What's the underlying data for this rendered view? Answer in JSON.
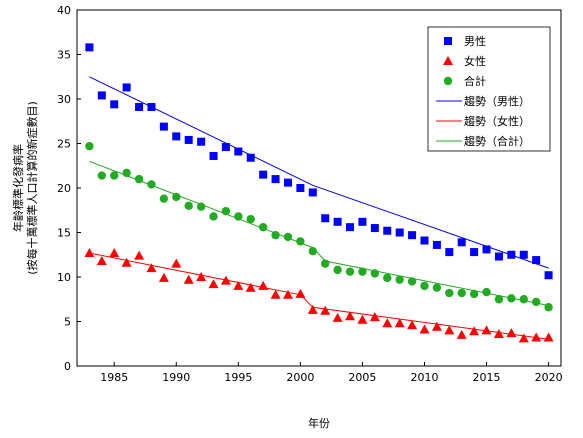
{
  "chart_data": {
    "type": "scatter",
    "xlabel": "年份",
    "ylabel_line1": "年齡標準化發病率",
    "ylabel_line2": "(按每十萬標準人口計算的新症數目)",
    "xlim": [
      1982,
      2021
    ],
    "ylim": [
      0,
      40
    ],
    "xticks": [
      1985,
      1990,
      1995,
      2000,
      2005,
      2010,
      2015,
      2020
    ],
    "yticks": [
      0,
      5,
      10,
      15,
      20,
      25,
      30,
      35,
      40
    ],
    "x": [
      1983,
      1984,
      1985,
      1986,
      1987,
      1988,
      1989,
      1990,
      1991,
      1992,
      1993,
      1994,
      1995,
      1996,
      1997,
      1998,
      1999,
      2000,
      2001,
      2002,
      2003,
      2004,
      2005,
      2006,
      2007,
      2008,
      2009,
      2010,
      2011,
      2012,
      2013,
      2014,
      2015,
      2016,
      2017,
      2018,
      2019,
      2020
    ],
    "series": [
      {
        "name": "男性",
        "marker": "square",
        "color": "#0000ff",
        "values": [
          35.8,
          30.4,
          29.4,
          31.3,
          29.1,
          29.1,
          26.9,
          25.8,
          25.4,
          25.2,
          23.6,
          24.6,
          24.1,
          23.4,
          21.5,
          21.0,
          20.6,
          20.0,
          19.5,
          16.6,
          16.2,
          15.6,
          16.2,
          15.5,
          15.2,
          15.0,
          14.7,
          14.1,
          13.6,
          12.8,
          13.9,
          12.8,
          13.1,
          12.3,
          12.5,
          12.5,
          11.9,
          10.2
        ]
      },
      {
        "name": "女性",
        "marker": "triangle",
        "color": "#ff0000",
        "values": [
          12.7,
          11.8,
          12.7,
          11.6,
          12.4,
          11.0,
          9.9,
          11.5,
          9.7,
          10.0,
          9.2,
          9.6,
          9.0,
          8.8,
          9.0,
          8.0,
          8.0,
          8.1,
          6.3,
          6.2,
          5.4,
          5.6,
          5.2,
          5.5,
          4.8,
          4.8,
          4.6,
          4.1,
          4.4,
          4.0,
          3.5,
          3.9,
          4.0,
          3.6,
          3.7,
          3.1,
          3.2,
          3.2
        ]
      },
      {
        "name": "合計",
        "marker": "circle",
        "color": "#22aa22",
        "values": [
          24.7,
          21.4,
          21.4,
          21.7,
          21.0,
          20.4,
          18.8,
          19.0,
          18.0,
          17.9,
          16.8,
          17.4,
          16.8,
          16.5,
          15.6,
          14.7,
          14.5,
          14.0,
          12.9,
          11.5,
          10.8,
          10.6,
          10.6,
          10.4,
          9.9,
          9.7,
          9.5,
          9.0,
          8.8,
          8.2,
          8.2,
          8.1,
          8.3,
          7.5,
          7.6,
          7.5,
          7.2,
          6.6
        ]
      }
    ],
    "trends": [
      {
        "name": "趨勢（男性）",
        "color": "#0000ff",
        "points": [
          [
            1983,
            32.5
          ],
          [
            2001,
            20.3
          ],
          [
            2020,
            11.0
          ]
        ]
      },
      {
        "name": "趨勢（女性）",
        "color": "#ff0000",
        "points": [
          [
            1983,
            12.7
          ],
          [
            2000,
            8.0
          ],
          [
            2001,
            6.6
          ],
          [
            2020,
            3.0
          ]
        ]
      },
      {
        "name": "趨勢（合計）",
        "color": "#22aa22",
        "points": [
          [
            1983,
            23.0
          ],
          [
            2001,
            13.3
          ],
          [
            2002,
            11.8
          ],
          [
            2020,
            6.8
          ]
        ]
      }
    ],
    "legend_position": "top-right",
    "grid": false
  }
}
